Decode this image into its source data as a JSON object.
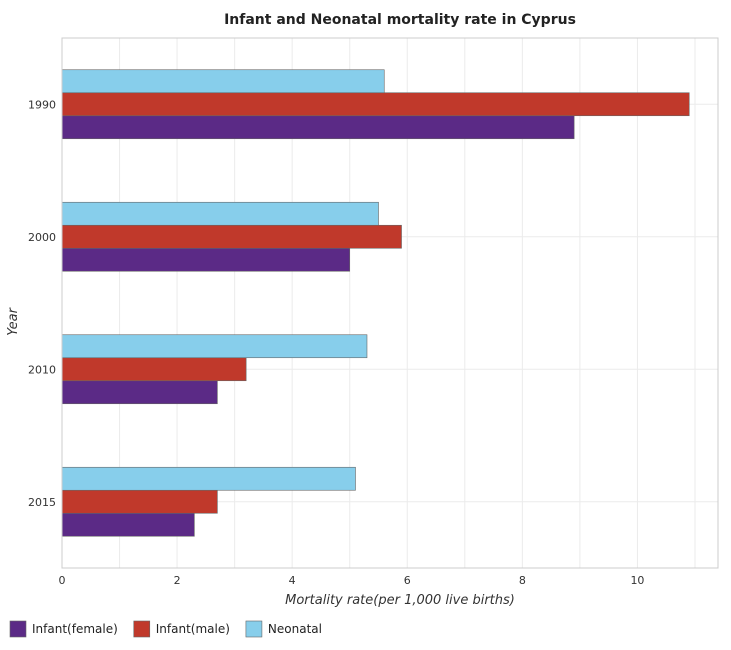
{
  "chart_data": {
    "type": "bar",
    "orientation": "horizontal",
    "title": "Infant and Neonatal mortality rate in Cyprus",
    "xlabel": "Mortality rate(per 1,000 live births)",
    "ylabel": "Year",
    "categories": [
      "1990",
      "2000",
      "2010",
      "2015"
    ],
    "xlim": [
      0,
      11.4
    ],
    "xticks": [
      0,
      2,
      4,
      6,
      8,
      10
    ],
    "grid": true,
    "legend_position": "bottom-left",
    "series": [
      {
        "name": "Infant(female)",
        "color": "#5b2a86",
        "values": [
          8.9,
          5.0,
          2.7,
          2.3
        ]
      },
      {
        "name": "Infant(male)",
        "color": "#c0392b",
        "values": [
          10.9,
          5.9,
          3.2,
          2.7
        ]
      },
      {
        "name": "Neonatal",
        "color": "#87ceeb",
        "values": [
          5.6,
          5.5,
          5.3,
          5.1
        ]
      }
    ]
  }
}
